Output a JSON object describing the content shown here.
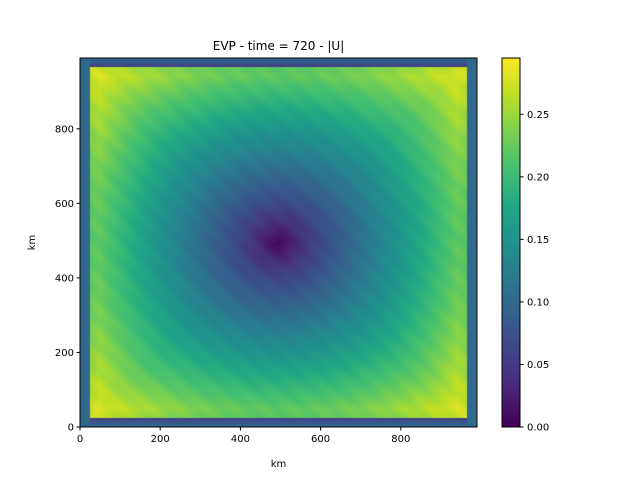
{
  "chart_data": {
    "type": "heatmap",
    "title": "EVP - time = 720 - |U|",
    "xlabel": "km",
    "ylabel": "km",
    "xlim": [
      0,
      990
    ],
    "ylim": [
      0,
      990
    ],
    "x_ticks": [
      0,
      200,
      400,
      600,
      800
    ],
    "y_ticks": [
      0,
      200,
      400,
      600,
      800
    ],
    "colormap": "viridis",
    "colorbar": {
      "range": [
        0,
        0.295
      ],
      "ticks": [
        "0.00",
        "0.05",
        "0.10",
        "0.15",
        "0.20",
        "0.25"
      ]
    },
    "field_description": {
      "center_km": [
        495,
        495
      ],
      "center_value": 0.0,
      "corner_peak_value": 0.27,
      "boundary_layer_value": 0.1,
      "boundary_margin_km": 25
    }
  }
}
